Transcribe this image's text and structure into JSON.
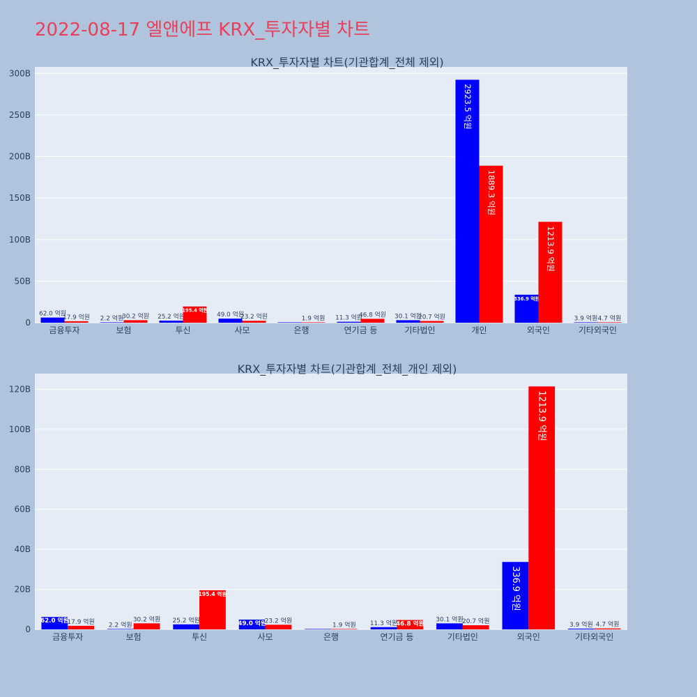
{
  "page": {
    "title": "2022-08-17 엘앤에프 KRX_투자자별 차트",
    "title_color": "#e8405a",
    "background_color": "#b0c4de",
    "plot_background_color": "#e5ecf6"
  },
  "chart_data": [
    {
      "type": "bar",
      "title": "KRX_투자자별 차트(기관합계_전체 제외)",
      "categories": [
        "금융투자",
        "보험",
        "투신",
        "사모",
        "은행",
        "연기금 등",
        "기타법인",
        "개인",
        "외국인",
        "기타외국인"
      ],
      "series": [
        {
          "color": "#0000ff",
          "values": [
            6.2,
            0.22,
            2.52,
            4.9,
            0,
            1.13,
            3.01,
            292.35,
            33.69,
            0.39
          ],
          "labels": [
            "62.0 억원",
            "2.2 억원",
            "25.2 억원",
            "49.0 억원",
            "",
            "11.3 억원",
            "30.1 억원",
            "2923.5 억원",
            "336.9 억원",
            "3.9 억원"
          ]
        },
        {
          "color": "#ff0000",
          "values": [
            1.79,
            3.02,
            19.54,
            2.32,
            0.19,
            4.68,
            2.07,
            188.93,
            121.39,
            0.47
          ],
          "labels": [
            "17.9 억원",
            "30.2 억원",
            "195.4 억원",
            "23.2 억원",
            "1.9 억원",
            "46.8 억원",
            "20.7 억원",
            "1889.3 억원",
            "1213.9 억원",
            "4.7 억원"
          ]
        }
      ],
      "yticks": [
        0,
        50,
        100,
        150,
        200,
        250,
        300
      ],
      "ytick_labels": [
        "0",
        "50B",
        "100B",
        "150B",
        "200B",
        "250B",
        "300B"
      ],
      "ylim": [
        0,
        307.8
      ],
      "grid": true,
      "legend": "none"
    },
    {
      "type": "bar",
      "title": "KRX_투자자별 차트(기관합계_전체_개인 제외)",
      "categories": [
        "금융투자",
        "보험",
        "투신",
        "사모",
        "은행",
        "연기금 등",
        "기타법인",
        "외국인",
        "기타외국인"
      ],
      "series": [
        {
          "color": "#0000ff",
          "values": [
            6.2,
            0.22,
            2.52,
            4.9,
            0,
            1.13,
            3.01,
            33.69,
            0.39
          ],
          "labels": [
            "62.0 억원",
            "2.2 억원",
            "25.2 억원",
            "49.0 억원",
            "",
            "11.3 억원",
            "30.1 억원",
            "336.9 억원",
            "3.9 억원"
          ]
        },
        {
          "color": "#ff0000",
          "values": [
            1.79,
            3.02,
            19.54,
            2.32,
            0.19,
            4.68,
            2.07,
            121.39,
            0.47
          ],
          "labels": [
            "17.9 억원",
            "30.2 억원",
            "195.4 억원",
            "23.2 억원",
            "1.9 억원",
            "46.8 억원",
            "20.7 억원",
            "1213.9 억원",
            "4.7 억원"
          ]
        }
      ],
      "yticks": [
        0,
        20,
        40,
        60,
        80,
        100,
        120
      ],
      "ytick_labels": [
        "0",
        "20B",
        "40B",
        "60B",
        "80B",
        "100B",
        "120B"
      ],
      "ylim": [
        0,
        127.8
      ],
      "grid": true,
      "legend": "none"
    }
  ]
}
